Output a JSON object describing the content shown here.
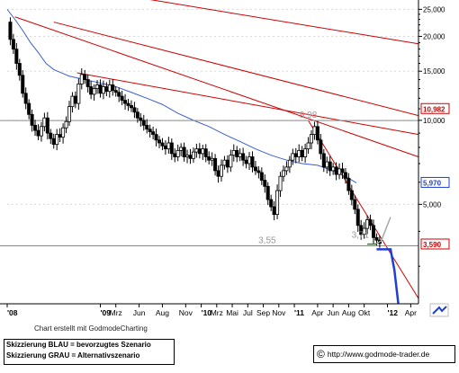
{
  "chart_data": {
    "type": "candlestick",
    "y_scale": "log",
    "ylim": [
      2.2,
      27
    ],
    "y_ticks": [
      {
        "value": 25,
        "label": "25,000"
      },
      {
        "value": 20,
        "label": "20,000"
      },
      {
        "value": 15,
        "label": "15,000"
      },
      {
        "value": 10,
        "label": "10,000"
      },
      {
        "value": 5,
        "label": "5,000"
      }
    ],
    "price_labels": [
      {
        "value": 10.982,
        "label": "10,982",
        "color": "#d00000"
      },
      {
        "value": 5.97,
        "label": "5,970",
        "color": "#1f3fd0"
      },
      {
        "value": 3.59,
        "label": "3,590",
        "color": "#d00000"
      }
    ],
    "x_ticks": [
      {
        "t": 0,
        "label": "'08",
        "bold": true
      },
      {
        "t": 12,
        "label": "'09",
        "bold": true
      },
      {
        "t": 14,
        "label": "Mrz",
        "bold": false
      },
      {
        "t": 17,
        "label": "Jun",
        "bold": false
      },
      {
        "t": 20,
        "label": "Aug",
        "bold": false
      },
      {
        "t": 23,
        "label": "Nov",
        "bold": false
      },
      {
        "t": 25,
        "label": "'10",
        "bold": true
      },
      {
        "t": 27,
        "label": "Mrz",
        "bold": false
      },
      {
        "t": 29,
        "label": "Mai",
        "bold": false
      },
      {
        "t": 31,
        "label": "Jul",
        "bold": false
      },
      {
        "t": 33,
        "label": "Sep",
        "bold": false
      },
      {
        "t": 35,
        "label": "Nov",
        "bold": false
      },
      {
        "t": 37,
        "label": "'11",
        "bold": true
      },
      {
        "t": 40,
        "label": "Apr",
        "bold": false
      },
      {
        "t": 42,
        "label": "Jun",
        "bold": false
      },
      {
        "t": 44,
        "label": "Aug",
        "bold": false
      },
      {
        "t": 46,
        "label": "Okt",
        "bold": false
      },
      {
        "t": 49,
        "label": "'12",
        "bold": true
      },
      {
        "t": 52,
        "label": "Apr",
        "bold": false
      }
    ],
    "price_series": [
      [
        0,
        22.5
      ],
      [
        0.4,
        19.5
      ],
      [
        0.8,
        18
      ],
      [
        1.2,
        16
      ],
      [
        1.6,
        14.5
      ],
      [
        2,
        12.5
      ],
      [
        2.4,
        11.5
      ],
      [
        2.8,
        10.5
      ],
      [
        3.2,
        9.6
      ],
      [
        3.6,
        9.2
      ],
      [
        4,
        8.8
      ],
      [
        4.4,
        9.5
      ],
      [
        4.8,
        10.2
      ],
      [
        5.2,
        9
      ],
      [
        5.6,
        8.6
      ],
      [
        6,
        8.2
      ],
      [
        6.4,
        8.9
      ],
      [
        6.8,
        8.7
      ],
      [
        7.2,
        9.4
      ],
      [
        7.6,
        9.9
      ],
      [
        8,
        11.2
      ],
      [
        8.4,
        12.2
      ],
      [
        8.8,
        11.5
      ],
      [
        9.2,
        13.5
      ],
      [
        9.6,
        14.6
      ],
      [
        10,
        14
      ],
      [
        10.4,
        13.2
      ],
      [
        10.8,
        12.4
      ],
      [
        11.2,
        13
      ],
      [
        11.6,
        13.4
      ],
      [
        12,
        12.5
      ],
      [
        12.4,
        13.2
      ],
      [
        12.8,
        12.7
      ],
      [
        13.2,
        13.4
      ],
      [
        13.6,
        12.8
      ],
      [
        14,
        12.6
      ],
      [
        14.4,
        12.2
      ],
      [
        14.8,
        11.8
      ],
      [
        15.2,
        11.5
      ],
      [
        15.6,
        11.3
      ],
      [
        16,
        11.1
      ],
      [
        16.4,
        10.7
      ],
      [
        16.8,
        10.2
      ],
      [
        17.2,
        10
      ],
      [
        17.6,
        9.6
      ],
      [
        18,
        9.3
      ],
      [
        18.4,
        9.1
      ],
      [
        18.8,
        8.9
      ],
      [
        19.2,
        8.5
      ],
      [
        19.6,
        8.3
      ],
      [
        20,
        8.1
      ],
      [
        20.4,
        7.9
      ],
      [
        20.8,
        8.3
      ],
      [
        21.2,
        7.6
      ],
      [
        21.6,
        7.4
      ],
      [
        22,
        7.8
      ],
      [
        22.4,
        8
      ],
      [
        22.8,
        7.4
      ],
      [
        23.2,
        7.5
      ],
      [
        23.6,
        7.3
      ],
      [
        24,
        7.7
      ],
      [
        24.4,
        7.9
      ],
      [
        24.8,
        7.6
      ],
      [
        25.2,
        7.9
      ],
      [
        25.6,
        7.4
      ],
      [
        26,
        7.2
      ],
      [
        26.4,
        7.3
      ],
      [
        26.8,
        6.6
      ],
      [
        27.2,
        6.3
      ],
      [
        27.6,
        6.9
      ],
      [
        28,
        7.2
      ],
      [
        28.4,
        6.8
      ],
      [
        28.8,
        7.5
      ],
      [
        29.2,
        7.8
      ],
      [
        29.6,
        7.4
      ],
      [
        30,
        7.6
      ],
      [
        30.4,
        7.2
      ],
      [
        30.8,
        7
      ],
      [
        31.2,
        7.4
      ],
      [
        31.6,
        6.8
      ],
      [
        32,
        6.6
      ],
      [
        32.4,
        6.5
      ],
      [
        32.8,
        6.1
      ],
      [
        33.2,
        5.8
      ],
      [
        33.6,
        5.2
      ],
      [
        34,
        4.9
      ],
      [
        34.4,
        4.6
      ],
      [
        34.8,
        5.6
      ],
      [
        35.2,
        6.3
      ],
      [
        35.6,
        6.6
      ],
      [
        36,
        6.8
      ],
      [
        36.4,
        7.2
      ],
      [
        36.8,
        7.6
      ],
      [
        37.2,
        7.4
      ],
      [
        37.6,
        7.8
      ],
      [
        38,
        7.4
      ],
      [
        38.4,
        7.9
      ],
      [
        38.8,
        8.3
      ],
      [
        39.2,
        8.9
      ],
      [
        39.6,
        9.5
      ],
      [
        40,
        8.5
      ],
      [
        40.4,
        7.6
      ],
      [
        40.8,
        6.8
      ],
      [
        41.2,
        7.1
      ],
      [
        41.6,
        6.6
      ],
      [
        42,
        6.8
      ],
      [
        42.4,
        6.4
      ],
      [
        42.8,
        6.7
      ],
      [
        43.2,
        6.5
      ],
      [
        43.6,
        6.2
      ],
      [
        44,
        5.6
      ],
      [
        44.4,
        5.2
      ],
      [
        44.8,
        4.8
      ],
      [
        45.2,
        4.2
      ],
      [
        45.6,
        3.9
      ],
      [
        46,
        4.1
      ],
      [
        46.4,
        4.4
      ],
      [
        46.8,
        4.2
      ],
      [
        47.2,
        3.8
      ],
      [
        47.6,
        3.72
      ],
      [
        48,
        3.62
      ]
    ],
    "moving_average": [
      [
        0,
        25
      ],
      [
        1,
        23
      ],
      [
        2,
        21
      ],
      [
        3,
        19
      ],
      [
        4,
        17.5
      ],
      [
        5,
        16
      ],
      [
        6,
        15.2
      ],
      [
        7,
        14.8
      ],
      [
        8,
        14.4
      ],
      [
        10,
        14
      ],
      [
        12,
        13.6
      ],
      [
        14,
        13.2
      ],
      [
        16,
        12.6
      ],
      [
        18,
        12
      ],
      [
        20,
        11.4
      ],
      [
        22,
        10.6
      ],
      [
        24,
        10
      ],
      [
        26,
        9.5
      ],
      [
        28,
        8.9
      ],
      [
        30,
        8.4
      ],
      [
        32,
        7.9
      ],
      [
        34,
        7.5
      ],
      [
        36,
        7.2
      ],
      [
        38,
        7
      ],
      [
        40,
        6.9
      ],
      [
        42,
        6.6
      ],
      [
        44,
        6.2
      ],
      [
        45,
        5.97
      ]
    ],
    "annotations": [
      {
        "text": "9,98",
        "t": 38.8,
        "value": 9.98,
        "color": "#999999"
      },
      {
        "text": "3,55",
        "t": 33.5,
        "value": 3.55,
        "color": "#999999"
      },
      {
        "text": "3,71",
        "t": 45.5,
        "value": 3.71,
        "color": "#999999"
      }
    ],
    "horizontal_lines": [
      {
        "value": 9.98,
        "color": "#8c8c8c"
      },
      {
        "value": 3.55,
        "color": "#8c8c8c"
      }
    ],
    "trend_lines": [
      {
        "p1": [
          1,
          23.5
        ],
        "p2": [
          53,
          7.4
        ],
        "color": "#d00000"
      },
      {
        "p1": [
          9,
          14.8
        ],
        "p2": [
          53,
          8.9
        ],
        "color": "#d00000"
      },
      {
        "p1": [
          6,
          22.5
        ],
        "p2": [
          53,
          10.4
        ],
        "color": "#d00000"
      },
      {
        "p1": [
          17,
          27.5
        ],
        "p2": [
          53,
          18.8
        ],
        "color": "#d00000"
      },
      {
        "p1": [
          38.8,
          9.98
        ],
        "p2": [
          53,
          2.3
        ],
        "color": "#d00000"
      }
    ],
    "scenarios": [
      {
        "name": "blau",
        "color": "#1f3fd0",
        "points": [
          [
            47.6,
            3.45
          ],
          [
            49.4,
            3.45
          ],
          [
            49.9,
            2.9
          ],
          [
            50.4,
            2.2
          ]
        ]
      },
      {
        "name": "grau",
        "color": "#a8a8a8",
        "points": [
          [
            47.6,
            3.62
          ],
          [
            48.2,
            3.7
          ],
          [
            49.4,
            4.5
          ]
        ]
      }
    ],
    "green_segment": {
      "color": "#1b8a1b",
      "points": [
        [
          46.4,
          3.6
        ],
        [
          47.6,
          3.6
        ]
      ]
    }
  },
  "footer": {
    "credit": "Chart erstellt mit GodmodeCharting",
    "legend_blue": "Skizzierung BLAU = bevorzugtes Szenario",
    "legend_grey": "Skizzierung GRAU = Alternativszenario",
    "url": "http://www.godmode-trader.de",
    "copyright": "©"
  }
}
